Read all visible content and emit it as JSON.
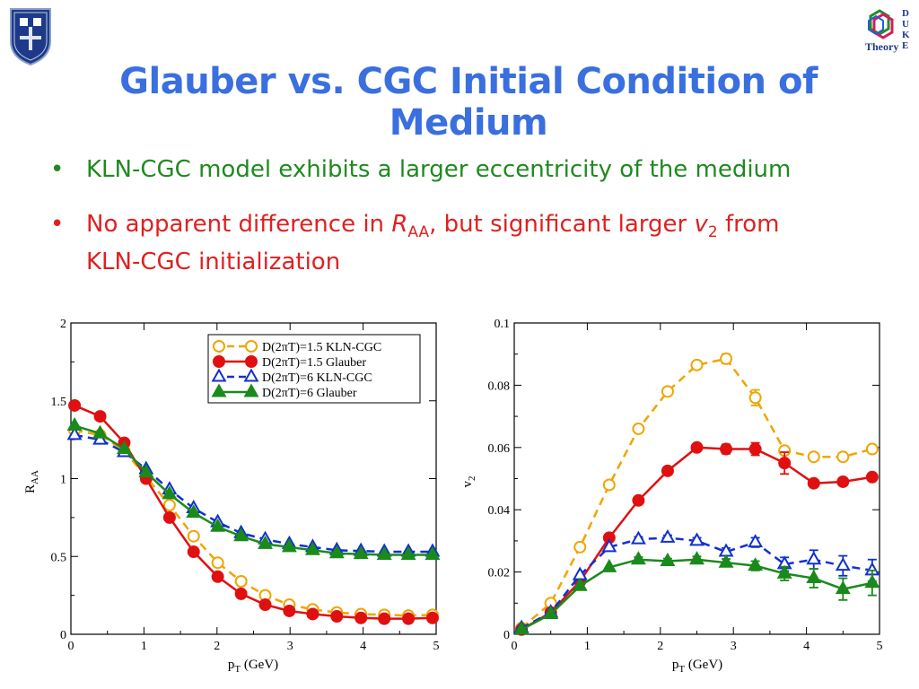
{
  "slide": {
    "title": "Glauber vs. CGC Initial Condition of Medium",
    "title_color": "#3a6fe0",
    "bullet_symbol": "•",
    "bullet1": {
      "text": "KLN-CGC model exhibits a larger eccentricity of the medium",
      "color": "#1f8a1f"
    },
    "bullet2": {
      "line1_a": "No apparent difference in ",
      "line1_R": "R",
      "line1_AA": "AA",
      "line1_b": ", but significant larger ",
      "line1_v": "v",
      "line1_2": "2",
      "line1_c": " from",
      "line2": "KLN-CGC initialization",
      "color": "#e02020"
    },
    "logo_right": {
      "letters": [
        "D",
        "U",
        "K",
        "E"
      ],
      "label": "Theory",
      "icon": "hexagon-logo-icon"
    },
    "logo_left": {
      "icon": "shield-crest-icon"
    }
  },
  "chart_data": [
    {
      "type": "line",
      "ylabel_main": "R",
      "ylabel_sub": "AA",
      "xlabel_main": "p",
      "xlabel_sub": "T",
      "xlabel_unit": " (GeV)",
      "xlim": [
        0,
        5
      ],
      "ylim": [
        0,
        2
      ],
      "xticks": [
        0,
        1,
        2,
        3,
        4,
        5
      ],
      "yticks": [
        0,
        0.5,
        1,
        1.5,
        2
      ],
      "legend_position": "top-right",
      "series": [
        {
          "name": "D(2πT)=1.5 KLN-CGC",
          "color": "#f0a500",
          "marker": "circle-open",
          "dash": true,
          "x": [
            0.05,
            0.4,
            0.73,
            1.03,
            1.35,
            1.68,
            2.01,
            2.33,
            2.66,
            2.99,
            3.31,
            3.64,
            3.97,
            4.29,
            4.62,
            4.95
          ],
          "y": [
            1.31,
            1.28,
            1.18,
            1.01,
            0.83,
            0.63,
            0.46,
            0.34,
            0.25,
            0.19,
            0.16,
            0.14,
            0.13,
            0.125,
            0.12,
            0.125
          ]
        },
        {
          "name": "D(2πT)=1.5 Glauber",
          "color": "#e01010",
          "marker": "circle-filled",
          "dash": false,
          "x": [
            0.05,
            0.4,
            0.73,
            1.03,
            1.35,
            1.68,
            2.01,
            2.33,
            2.66,
            2.99,
            3.31,
            3.64,
            3.97,
            4.29,
            4.62,
            4.95
          ],
          "y": [
            1.47,
            1.4,
            1.23,
            1.0,
            0.75,
            0.53,
            0.37,
            0.26,
            0.19,
            0.15,
            0.13,
            0.115,
            0.105,
            0.1,
            0.1,
            0.105
          ]
        },
        {
          "name": "D(2πT)=6 KLN-CGC",
          "color": "#1030d0",
          "marker": "triangle-open",
          "dash": true,
          "x": [
            0.05,
            0.4,
            0.73,
            1.03,
            1.35,
            1.68,
            2.01,
            2.33,
            2.66,
            2.99,
            3.31,
            3.64,
            3.97,
            4.29,
            4.62,
            4.95
          ],
          "y": [
            1.28,
            1.25,
            1.17,
            1.06,
            0.93,
            0.81,
            0.72,
            0.65,
            0.61,
            0.58,
            0.56,
            0.54,
            0.535,
            0.53,
            0.53,
            0.53
          ]
        },
        {
          "name": "D(2πT)=6 Glauber",
          "color": "#1a8a1a",
          "marker": "triangle-filled",
          "dash": false,
          "x": [
            0.05,
            0.4,
            0.73,
            1.03,
            1.35,
            1.68,
            2.01,
            2.33,
            2.66,
            2.99,
            3.31,
            3.64,
            3.97,
            4.29,
            4.62,
            4.95
          ],
          "y": [
            1.34,
            1.29,
            1.19,
            1.04,
            0.9,
            0.78,
            0.69,
            0.63,
            0.58,
            0.56,
            0.54,
            0.52,
            0.515,
            0.51,
            0.51,
            0.51
          ]
        }
      ]
    },
    {
      "type": "line",
      "ylabel_main": "v",
      "ylabel_sub": "2",
      "xlabel_main": "p",
      "xlabel_sub": "T",
      "xlabel_unit": " (GeV)",
      "xlim": [
        0,
        5
      ],
      "ylim": [
        0,
        0.1
      ],
      "xticks": [
        0,
        1,
        2,
        3,
        4,
        5
      ],
      "yticks": [
        0,
        0.02,
        0.04,
        0.06,
        0.08,
        0.1
      ],
      "ytick_labels": [
        "0",
        "0.02",
        "0.04",
        "0.06",
        "0.08",
        "0.1"
      ],
      "series": [
        {
          "name": "D(2πT)=1.5 KLN-CGC",
          "color": "#f0a500",
          "marker": "circle-open",
          "dash": true,
          "x": [
            0.1,
            0.5,
            0.9,
            1.3,
            1.7,
            2.1,
            2.5,
            2.9,
            3.3,
            3.7,
            4.1,
            4.5,
            4.9
          ],
          "y": [
            0.002,
            0.01,
            0.028,
            0.048,
            0.066,
            0.078,
            0.0865,
            0.0885,
            0.076,
            0.059,
            0.057,
            0.057,
            0.0595
          ],
          "err": [
            0,
            0,
            0,
            0,
            0,
            0,
            0,
            0.0015,
            0.0025,
            0,
            0,
            0,
            0
          ]
        },
        {
          "name": "D(2πT)=1.5 Glauber",
          "color": "#e01010",
          "marker": "circle-filled",
          "dash": false,
          "x": [
            0.1,
            0.5,
            0.9,
            1.3,
            1.7,
            2.1,
            2.5,
            2.9,
            3.3,
            3.7,
            4.1,
            4.5,
            4.9
          ],
          "y": [
            0.0015,
            0.007,
            0.017,
            0.031,
            0.043,
            0.0525,
            0.06,
            0.0595,
            0.0595,
            0.055,
            0.0485,
            0.049,
            0.0505
          ],
          "err": [
            0,
            0,
            0,
            0,
            0,
            0,
            0,
            0.0015,
            0.002,
            0.0035,
            0,
            0,
            0
          ]
        },
        {
          "name": "D(2πT)=6 KLN-CGC",
          "color": "#1030d0",
          "marker": "triangle-open",
          "dash": true,
          "x": [
            0.1,
            0.5,
            0.9,
            1.3,
            1.7,
            2.1,
            2.5,
            2.9,
            3.3,
            3.7,
            4.1,
            4.5,
            4.9
          ],
          "y": [
            0.002,
            0.007,
            0.019,
            0.028,
            0.0305,
            0.031,
            0.03,
            0.0265,
            0.0295,
            0.0225,
            0.024,
            0.022,
            0.0205
          ],
          "err": [
            0,
            0,
            0,
            0,
            0.0008,
            0.0008,
            0.001,
            0.0012,
            0.0015,
            0.0022,
            0.003,
            0.0032,
            0.0035
          ]
        },
        {
          "name": "D(2πT)=6 Glauber",
          "color": "#1a8a1a",
          "marker": "triangle-filled",
          "dash": false,
          "x": [
            0.1,
            0.5,
            0.9,
            1.3,
            1.7,
            2.1,
            2.5,
            2.9,
            3.3,
            3.7,
            4.1,
            4.5,
            4.9
          ],
          "y": [
            0.0015,
            0.0065,
            0.0155,
            0.0215,
            0.024,
            0.0235,
            0.024,
            0.023,
            0.022,
            0.0195,
            0.018,
            0.0145,
            0.0165
          ],
          "err": [
            0,
            0,
            0,
            0,
            0.0008,
            0.0008,
            0.001,
            0.0012,
            0.0015,
            0.0022,
            0.003,
            0.0035,
            0.004
          ]
        }
      ]
    }
  ]
}
